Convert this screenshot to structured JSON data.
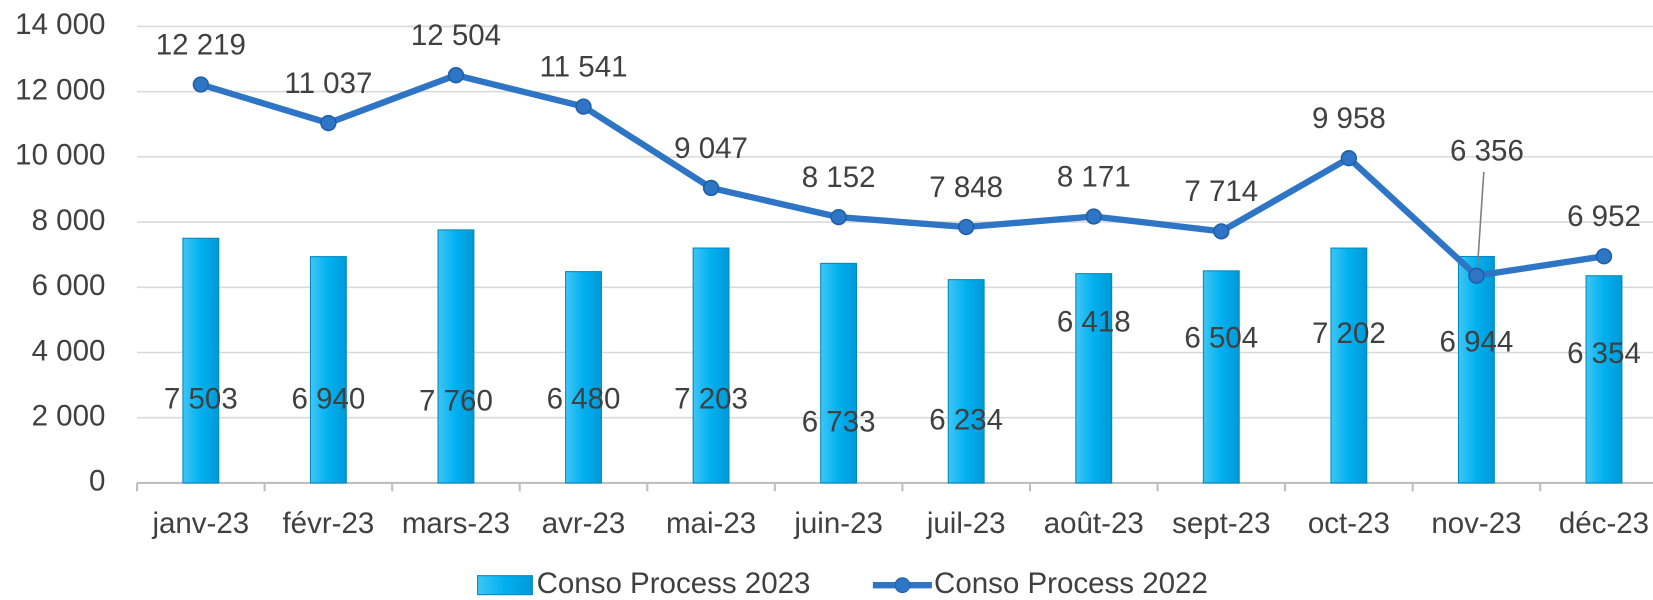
{
  "chart_data": {
    "type": "combo",
    "categories": [
      "janv-23",
      "févr-23",
      "mars-23",
      "avr-23",
      "mai-23",
      "juin-23",
      "juil-23",
      "août-23",
      "sept-23",
      "oct-23",
      "nov-23",
      "déc-23"
    ],
    "series": [
      {
        "name": "Conso Process 2023",
        "type": "bar",
        "color": "#00b0f0",
        "values": [
          7503,
          6940,
          7760,
          6480,
          7203,
          6733,
          6234,
          6418,
          6504,
          7202,
          6944,
          6354
        ],
        "value_labels": [
          "7 503",
          "6 940",
          "7 760",
          "6 480",
          "7 203",
          "6 733",
          "6 234",
          "6 418",
          "6 504",
          "7 202",
          "6 944",
          "6 354"
        ]
      },
      {
        "name": "Conso Process 2022",
        "type": "line",
        "color": "#2e75c6",
        "values": [
          12219,
          11037,
          12504,
          11541,
          9047,
          8152,
          7848,
          8171,
          7714,
          9958,
          6356,
          6952
        ],
        "value_labels": [
          "12 219",
          "11 037",
          "12 504",
          "11 541",
          "9 047",
          "8 152",
          "7 848",
          "8 171",
          "7 714",
          "9 958",
          "6 356",
          "6 952"
        ]
      }
    ],
    "ylim": [
      0,
      14000
    ],
    "yticks": [
      0,
      {
        "value": 2000,
        "label": "2 000"
      },
      {
        "value": 4000,
        "label": "4 000"
      },
      {
        "value": 6000,
        "label": "6 000"
      },
      {
        "value": 8000,
        "label": "8 000"
      },
      {
        "value": 10000,
        "label": "10 000"
      },
      {
        "value": 12000,
        "label": "12 000"
      },
      {
        "value": 14000,
        "label": "14 000"
      }
    ],
    "grid": true,
    "legend": "bottom"
  }
}
